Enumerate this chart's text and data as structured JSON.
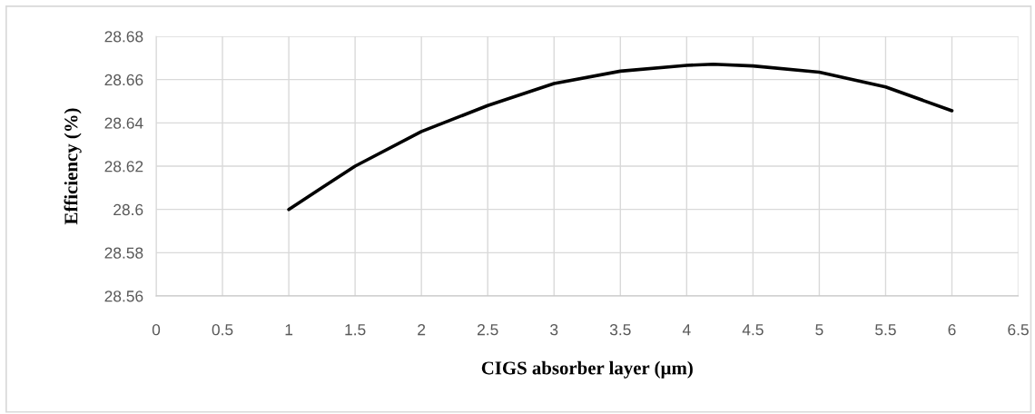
{
  "chart_data": {
    "type": "line",
    "xlabel": "CIGS absorber layer (µm)",
    "ylabel": "Efficiency (%)",
    "x": [
      1,
      1.25,
      1.5,
      2,
      2.5,
      3,
      3.5,
      4,
      4.2,
      4.5,
      5,
      5.5,
      6
    ],
    "series": [
      {
        "color": "#000000",
        "values": [
          28.6,
          28.61,
          28.62,
          28.636,
          28.648,
          28.6582,
          28.6639,
          28.6666,
          28.6671,
          28.6663,
          28.6634,
          28.6566,
          28.6456
        ]
      }
    ],
    "xlim": [
      0,
      6.5
    ],
    "xticks": [
      0,
      0.5,
      1,
      1.5,
      2,
      2.5,
      3,
      3.5,
      4,
      4.5,
      5,
      5.5,
      6,
      6.5
    ],
    "ylim": [
      28.56,
      28.68
    ],
    "yticks": [
      28.56,
      28.58,
      28.6,
      28.62,
      28.64,
      28.66,
      28.68
    ],
    "grid": true,
    "marker": "none",
    "line_style": "solid",
    "legend": false
  }
}
